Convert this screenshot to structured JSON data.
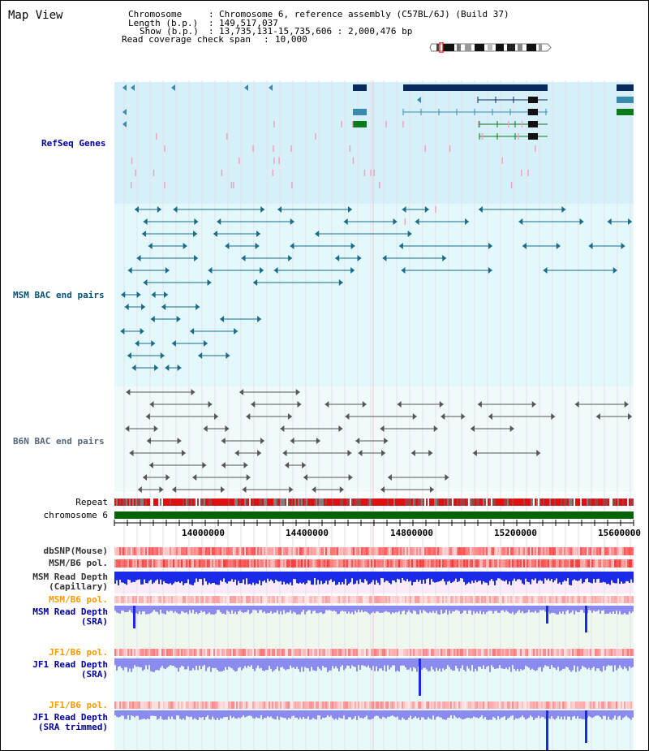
{
  "view_title": "Map View",
  "header": {
    "chromosome_key": "Chromosome",
    "chromosome_value": "Chromosome 6, reference assembly (C57BL/6J) (Build 37)",
    "length_key": "Length (b.p.)",
    "length_value": "149,517,037",
    "show_key": "Show (b.p.)",
    "show_value": "13,735,131-15,735,606 : 2,000,476 bp",
    "span_key": "Read coverage check span",
    "span_value": "10,000"
  },
  "tracks": {
    "refseq": "RefSeq Genes",
    "msm_bac": "MSM BAC end pairs",
    "b6n_bac": "B6N BAC end pairs",
    "repeat": "Repeat",
    "chromosome": "chromosome 6",
    "dbsnp": "dbSNP(Mouse)",
    "msm_b6_pol": "MSM/B6 pol.",
    "msm_depth_cap_1": "MSM Read Depth",
    "msm_depth_cap_2": "(Capillary)",
    "msm_b6_pol_2": "MSM/B6 pol.",
    "msm_depth_sra_1": "MSM Read Depth",
    "msm_depth_sra_2": "(SRA)",
    "jf1_b6_pol": "JF1/B6 pol.",
    "jf1_depth_sra_1": "JF1 Read Depth",
    "jf1_depth_sra_2": "(SRA)",
    "jf1_b6_pol_2": "JF1/B6 pol.",
    "jf1_depth_trim_1": "JF1 Read Depth",
    "jf1_depth_trim_2": "(SRA trimmed)"
  },
  "axis": {
    "ticks": [
      "14000000",
      "14400000",
      "14800000",
      "15200000",
      "15600000"
    ]
  },
  "colors": {
    "refseq_bg": "#d6f0fa",
    "bac_bg": "#e2f8fa",
    "gene_dark": "#0a2a5c",
    "gene_mid": "#3a8ab0",
    "gene_green": "#0a7a1a",
    "bac_msm": "#1a6a8a",
    "bac_b6n": "#555555",
    "chromosome_bar": "#006400",
    "depth_blue": "#1a2ae8",
    "depth_light": "#8a8af0",
    "refseq_label": "#000099",
    "msm_label": "#005577",
    "b6n_label": "#556677",
    "pol_orange": "#ff9900"
  }
}
